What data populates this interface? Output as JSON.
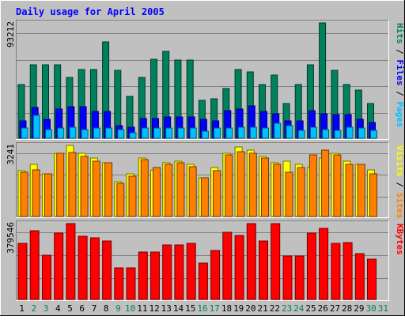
{
  "chart_data": {
    "type": "bar",
    "title": "Daily usage for April 2005",
    "categories": [
      "1",
      "2",
      "3",
      "4",
      "5",
      "6",
      "7",
      "8",
      "9",
      "10",
      "11",
      "12",
      "13",
      "14",
      "15",
      "16",
      "17",
      "18",
      "19",
      "20",
      "21",
      "22",
      "23",
      "24",
      "25",
      "26",
      "27",
      "28",
      "29",
      "30",
      "31"
    ],
    "weekend_days": [
      "2",
      "3",
      "9",
      "10",
      "16",
      "17",
      "23",
      "24",
      "30",
      "31"
    ],
    "colors": {
      "background": "#c0c0c0",
      "title": "#0000ff",
      "hits": "#00805c",
      "files": "#0000ff",
      "pages": "#00c0ff",
      "visits": "#ffff00",
      "sites": "#ff8000",
      "kbytes": "#ff0000",
      "weekday_label": "#000000",
      "weekend_label": "#00805c"
    },
    "panels": [
      {
        "id": "hits-files-pages",
        "ymax_label": "93212",
        "ymax": 93212,
        "axis_labels": [
          {
            "text": "Pages",
            "color": "#00c0ff"
          },
          {
            "text": " / ",
            "color": "#000000"
          },
          {
            "text": "Files",
            "color": "#0000ff"
          },
          {
            "text": " / ",
            "color": "#000000"
          },
          {
            "text": "Hits",
            "color": "#00805c"
          }
        ],
        "series": [
          {
            "name": "Hits",
            "values": [
              43636,
              59574,
              59574,
              59574,
              49197,
              55386,
              55386,
              77589,
              54631,
              34024,
              49197,
              64045,
              70134,
              63043,
              63043,
              30493,
              32024,
              40193,
              55386,
              53601,
              43636,
              51098,
              28393,
              43636,
              59574,
              93212,
              54631,
              43636,
              39167,
              28393,
              0
            ]
          },
          {
            "name": "Files",
            "values": [
              13936,
              24593,
              15097,
              23496,
              25294,
              25294,
              21995,
              21995,
              10499,
              9201,
              16198,
              16198,
              17496,
              17496,
              17496,
              15097,
              14098,
              22494,
              23496,
              25994,
              21995,
              20096,
              14098,
              14098,
              22494,
              20096,
              19296,
              19296,
              15097,
              12495,
              0
            ]
          },
          {
            "name": "Pages",
            "values": [
              8597,
              18495,
              7298,
              8597,
              9201,
              7298,
              8597,
              8597,
              7298,
              4199,
              8597,
              8597,
              8597,
              8597,
              8597,
              5598,
              8597,
              8597,
              9201,
              9201,
              8597,
              11997,
              10499,
              6198,
              9201,
              7298,
              6198,
              9201,
              8597,
              6198,
              0
            ]
          }
        ]
      },
      {
        "id": "visits-sites",
        "ymax_label": "3241",
        "ymax": 3241,
        "axis_labels": [
          {
            "text": "Sites",
            "color": "#ff8000"
          },
          {
            "text": " / ",
            "color": "#000000"
          },
          {
            "text": "Visits",
            "color": "#ffff00"
          }
        ],
        "series": [
          {
            "name": "Visits",
            "values": [
              2095,
              2385,
              1960,
              2865,
              3241,
              2865,
              2655,
              2455,
              1575,
              1935,
              2655,
              2125,
              2455,
              2525,
              2385,
              1775,
              2215,
              2865,
              3155,
              3030,
              2725,
              2455,
              2525,
              2385,
              2225,
              2655,
              2865,
              2525,
              2385,
              2125,
              0
            ]
          },
          {
            "name": "Sites",
            "values": [
              2015,
              2125,
              1945,
              2865,
              2930,
              2735,
              2525,
              2455,
              1515,
              1850,
              2585,
              2215,
              2385,
              2455,
              2255,
              1775,
              2085,
              2795,
              2955,
              2865,
              2655,
              2385,
              2025,
              2225,
              2795,
              3030,
              2795,
              2385,
              2385,
              1935,
              0
            ]
          }
        ]
      },
      {
        "id": "kbytes",
        "ymax_label": "379546",
        "ymax": 379546,
        "axis_labels": [
          {
            "text": "KBytes",
            "color": "#ff0000"
          }
        ],
        "series": [
          {
            "name": "KBytes",
            "values": [
              279082,
              345830,
              223266,
              331564,
              379546,
              316676,
              307370,
              293107,
              159542,
              159542,
              237994,
              237994,
              272093,
              272093,
              279082,
              182904,
              244912,
              335779,
              319837,
              379546,
              293107,
              379546,
              218713,
              218713,
              331564,
              356489,
              279082,
              286096,
              228099,
              200182,
              0
            ]
          }
        ]
      }
    ]
  }
}
